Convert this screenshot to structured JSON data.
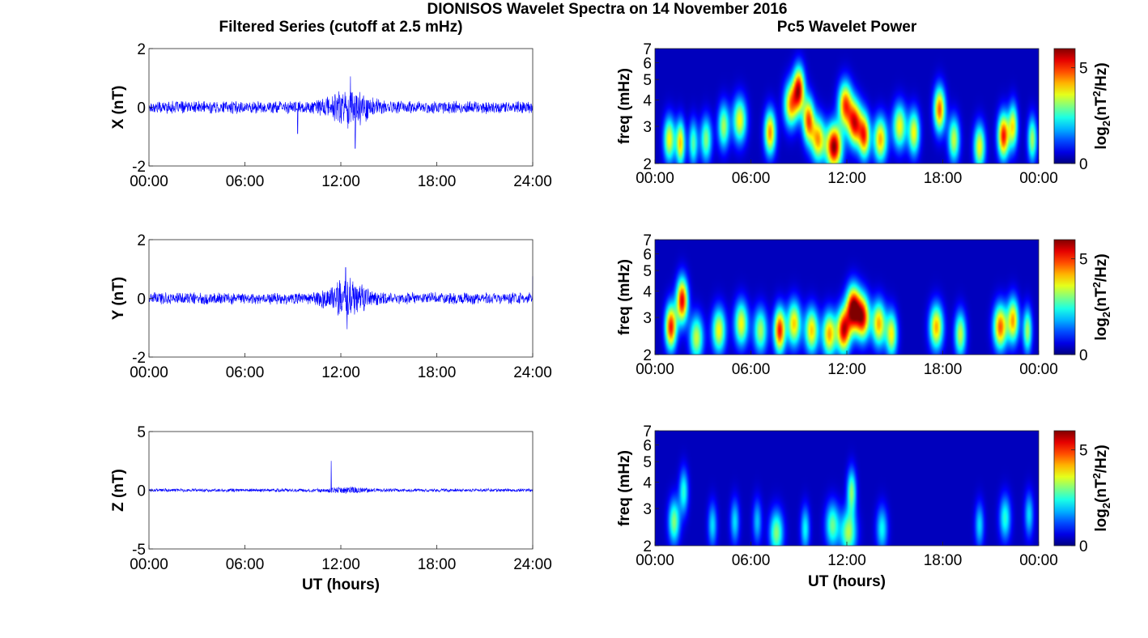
{
  "figure": {
    "title": "DIONISOS Wavelet Spectra on 14 November 2016",
    "left_title": "Filtered Series (cutoff at 2.5 mHz)",
    "right_title": "Pc5 Wavelet Power",
    "colors": {
      "trace": "#0000ff",
      "axis": "#262626"
    }
  },
  "chart_data": [
    {
      "type": "line",
      "panel": "x-series",
      "ylabel": "X (nT)",
      "xlabel": "",
      "xlim": [
        0,
        24
      ],
      "ylim": [
        -2,
        2
      ],
      "xticks": [
        "00:00",
        "06:00",
        "12:00",
        "18:00",
        "24:00"
      ],
      "yticks": [
        "-2",
        "0",
        "2"
      ],
      "noise": {
        "base_amp": 0.18,
        "active_hours": [
          12.5
        ],
        "active_amp": 0.45,
        "spikes": [
          [
            12.6,
            1.05
          ],
          [
            12.9,
            -1.4
          ],
          [
            9.3,
            -0.9
          ]
        ]
      }
    },
    {
      "type": "line",
      "panel": "y-series",
      "ylabel": "Y (nT)",
      "xlabel": "",
      "xlim": [
        0,
        24
      ],
      "ylim": [
        -2,
        2
      ],
      "xticks": [
        "00:00",
        "06:00",
        "12:00",
        "18:00",
        "24:00"
      ],
      "yticks": [
        "-2",
        "0",
        "2"
      ],
      "noise": {
        "base_amp": 0.17,
        "active_hours": [
          12.4
        ],
        "active_amp": 0.45,
        "spikes": [
          [
            12.3,
            1.05
          ],
          [
            12.4,
            -1.05
          ],
          [
            24.0,
            0.75
          ]
        ]
      }
    },
    {
      "type": "line",
      "panel": "z-series",
      "ylabel": "Z (nT)",
      "xlabel": "UT (hours)",
      "xlim": [
        0,
        24
      ],
      "ylim": [
        -5,
        5
      ],
      "xticks": [
        "00:00",
        "06:00",
        "12:00",
        "18:00",
        "24:00"
      ],
      "yticks": [
        "-5",
        "0",
        "5"
      ],
      "noise": {
        "base_amp": 0.12,
        "active_hours": [
          12.5
        ],
        "active_amp": 0.15,
        "spikes": [
          [
            11.4,
            2.5
          ]
        ]
      }
    },
    {
      "type": "heatmap",
      "panel": "x-wavelet",
      "ylabel": "freq (mHz)",
      "xlabel": "",
      "xlim": [
        0,
        24
      ],
      "ylim": [
        2,
        7
      ],
      "yscale": "log",
      "xticks": [
        "00:00",
        "06:00",
        "12:00",
        "18:00",
        "00:00"
      ],
      "yticks": [
        "2",
        "3",
        "4",
        "5",
        "6",
        "7"
      ],
      "colorbar": {
        "label": "log2(nT2/Hz)",
        "ticks": [
          "0",
          "5"
        ],
        "range": [
          0,
          6
        ]
      },
      "blobs": [
        [
          0.9,
          2.6,
          0.25,
          3.5
        ],
        [
          1.6,
          2.5,
          0.2,
          3.8
        ],
        [
          2.4,
          2.5,
          0.2,
          2.5
        ],
        [
          3.2,
          2.6,
          0.25,
          2.8
        ],
        [
          4.3,
          3.0,
          0.25,
          3.0
        ],
        [
          5.3,
          3.2,
          0.3,
          3.5
        ],
        [
          7.2,
          2.8,
          0.25,
          4.2
        ],
        [
          8.5,
          3.8,
          0.3,
          4.0
        ],
        [
          9.0,
          4.5,
          0.25,
          5.0
        ],
        [
          9.6,
          3.2,
          0.25,
          4.5
        ],
        [
          10.2,
          2.6,
          0.3,
          4.0
        ],
        [
          11.2,
          2.4,
          0.35,
          5.8
        ],
        [
          11.9,
          3.8,
          0.3,
          4.5
        ],
        [
          12.5,
          3.1,
          0.3,
          5.0
        ],
        [
          13.1,
          2.7,
          0.25,
          4.5
        ],
        [
          14.1,
          2.6,
          0.3,
          4.0
        ],
        [
          15.3,
          3.0,
          0.3,
          3.5
        ],
        [
          16.2,
          2.8,
          0.25,
          3.5
        ],
        [
          17.8,
          3.6,
          0.25,
          4.5
        ],
        [
          18.7,
          2.6,
          0.25,
          3.2
        ],
        [
          20.3,
          2.4,
          0.25,
          3.5
        ],
        [
          21.8,
          2.7,
          0.25,
          5.0
        ],
        [
          22.4,
          3.0,
          0.2,
          3.5
        ],
        [
          23.6,
          2.6,
          0.2,
          3.0
        ]
      ]
    },
    {
      "type": "heatmap",
      "panel": "y-wavelet",
      "ylabel": "freq (mHz)",
      "xlabel": "",
      "xlim": [
        0,
        24
      ],
      "ylim": [
        2,
        7
      ],
      "yscale": "log",
      "xticks": [
        "00:00",
        "06:00",
        "12:00",
        "18:00",
        "00:00"
      ],
      "yticks": [
        "2",
        "3",
        "4",
        "5",
        "6",
        "7"
      ],
      "colorbar": {
        "label": "log2(nT2/Hz)",
        "ticks": [
          "0",
          "5"
        ],
        "range": [
          0,
          6
        ]
      },
      "blobs": [
        [
          1.0,
          2.7,
          0.25,
          5.0
        ],
        [
          1.7,
          3.6,
          0.25,
          5.2
        ],
        [
          2.6,
          2.4,
          0.3,
          3.2
        ],
        [
          4.0,
          2.6,
          0.3,
          3.5
        ],
        [
          5.4,
          2.8,
          0.3,
          3.5
        ],
        [
          6.6,
          2.6,
          0.3,
          3.0
        ],
        [
          7.8,
          2.6,
          0.25,
          5.0
        ],
        [
          8.7,
          2.8,
          0.3,
          3.8
        ],
        [
          9.8,
          2.6,
          0.3,
          3.8
        ],
        [
          10.9,
          2.5,
          0.3,
          4.0
        ],
        [
          11.8,
          2.6,
          0.3,
          5.2
        ],
        [
          12.4,
          3.3,
          0.3,
          5.8
        ],
        [
          13.0,
          3.0,
          0.3,
          5.0
        ],
        [
          14.0,
          2.8,
          0.3,
          4.0
        ],
        [
          14.8,
          2.5,
          0.25,
          3.5
        ],
        [
          17.6,
          2.7,
          0.3,
          4.0
        ],
        [
          19.1,
          2.5,
          0.25,
          3.2
        ],
        [
          21.6,
          2.7,
          0.3,
          4.5
        ],
        [
          22.4,
          2.9,
          0.25,
          4.0
        ],
        [
          23.3,
          2.6,
          0.2,
          3.0
        ]
      ]
    },
    {
      "type": "heatmap",
      "panel": "z-wavelet",
      "ylabel": "freq (mHz)",
      "xlabel": "UT (hours)",
      "xlim": [
        0,
        24
      ],
      "ylim": [
        2,
        7
      ],
      "yscale": "log",
      "xticks": [
        "00:00",
        "06:00",
        "12:00",
        "18:00",
        "00:00"
      ],
      "yticks": [
        "2",
        "3",
        "4",
        "5",
        "6",
        "7"
      ],
      "colorbar": {
        "label": "log2(nT2/Hz)",
        "ticks": [
          "0",
          "5"
        ],
        "range": [
          0,
          6
        ]
      },
      "blobs": [
        [
          1.2,
          2.6,
          0.25,
          2.8
        ],
        [
          1.8,
          3.6,
          0.2,
          2.2
        ],
        [
          3.6,
          2.5,
          0.2,
          1.8
        ],
        [
          5.0,
          2.6,
          0.2,
          1.8
        ],
        [
          6.4,
          2.6,
          0.2,
          1.6
        ],
        [
          7.6,
          2.3,
          0.3,
          2.8
        ],
        [
          9.4,
          2.4,
          0.2,
          2.0
        ],
        [
          11.1,
          2.5,
          0.3,
          2.6
        ],
        [
          12.1,
          2.3,
          0.35,
          3.0
        ],
        [
          12.3,
          3.6,
          0.2,
          2.8
        ],
        [
          14.2,
          2.4,
          0.25,
          2.0
        ],
        [
          20.3,
          2.5,
          0.2,
          1.8
        ],
        [
          21.9,
          2.7,
          0.25,
          2.2
        ],
        [
          23.4,
          2.8,
          0.2,
          1.8
        ]
      ]
    }
  ]
}
